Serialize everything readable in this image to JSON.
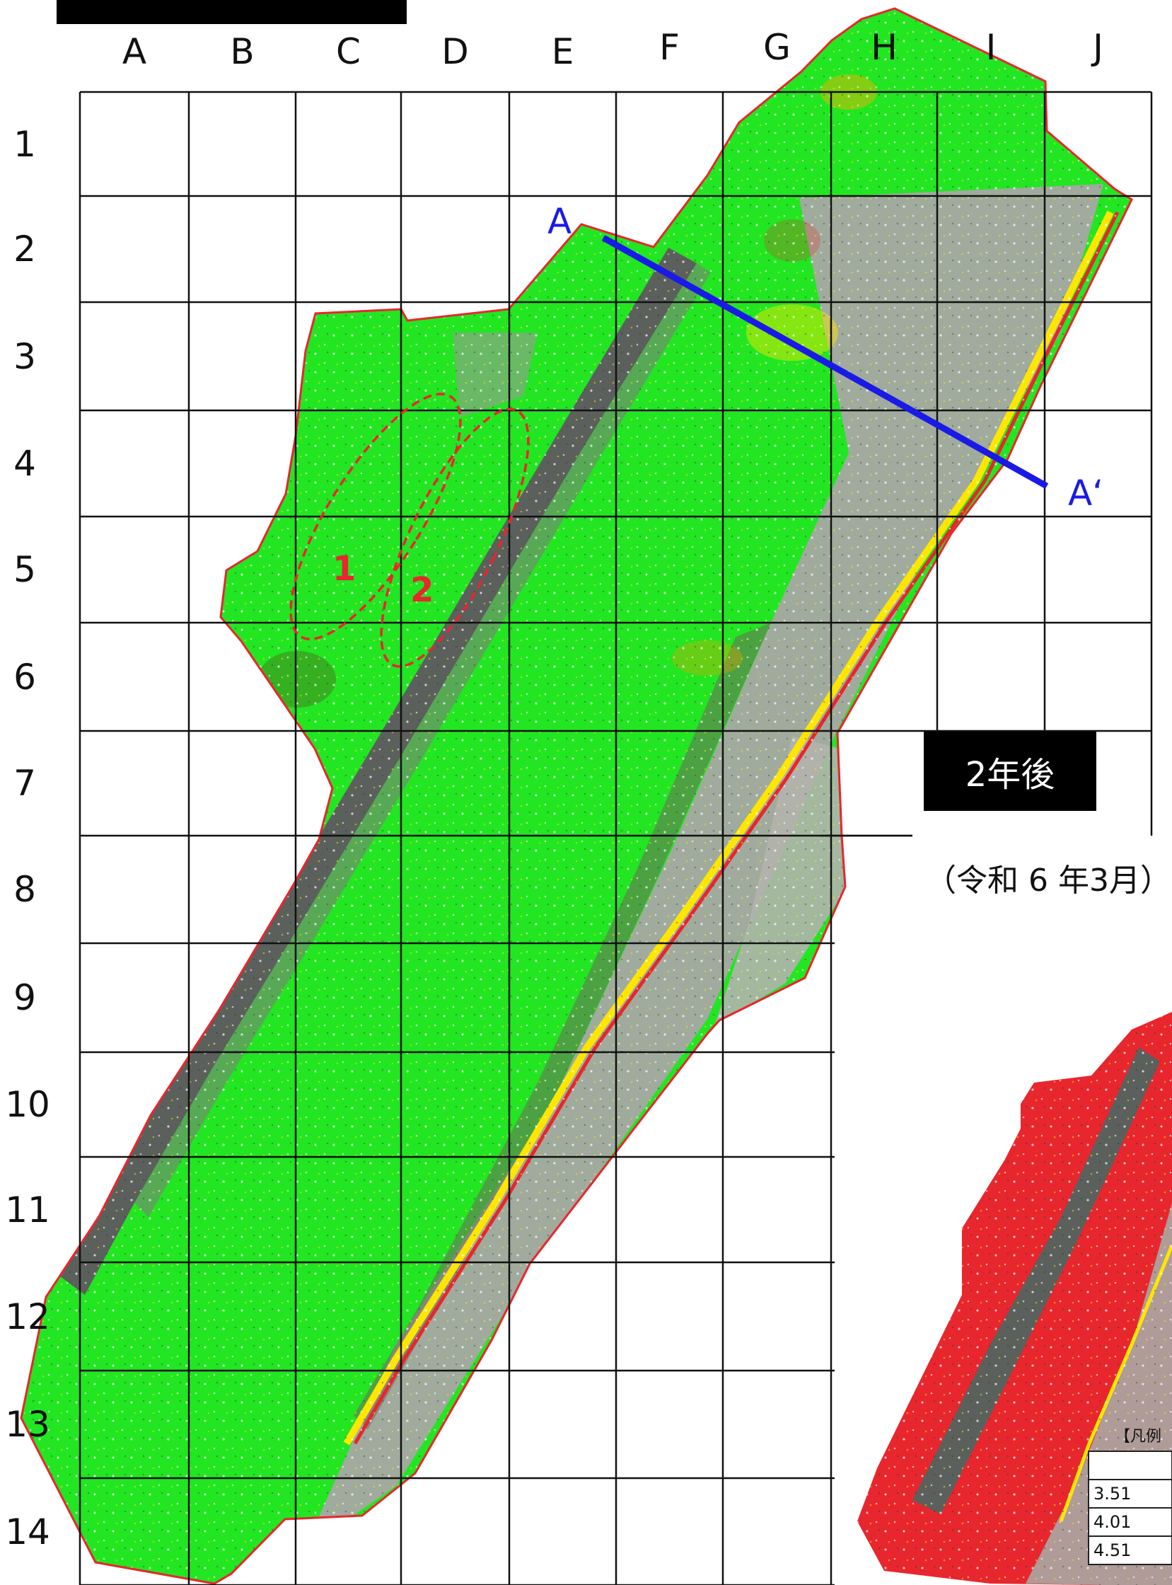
{
  "header": {
    "title": ""
  },
  "grid": {
    "columns": [
      "A",
      "B",
      "C",
      "D",
      "E",
      "F",
      "G",
      "H",
      "I",
      "J"
    ],
    "rows": [
      "1",
      "2",
      "3",
      "4",
      "5",
      "6",
      "7",
      "8",
      "9",
      "10",
      "11",
      "12",
      "13",
      "14"
    ]
  },
  "section_line": {
    "start_label": "A",
    "end_label": "A‘"
  },
  "zones": [
    {
      "label": "1"
    },
    {
      "label": "2"
    }
  ],
  "badge": {
    "label": "2年後"
  },
  "date": {
    "label": "（令和 6 年3月）"
  },
  "legend": {
    "title": "【凡例",
    "rows": [
      "",
      "3.51",
      "4.01",
      "4.51"
    ]
  },
  "colors": {
    "vegetation": "#22e622",
    "bare_ground": "#a8a8a4",
    "road": "#5b605c",
    "boundary": "#e8262d",
    "section_line": "#1a1ae6",
    "inset_fill": "#e8262d"
  }
}
